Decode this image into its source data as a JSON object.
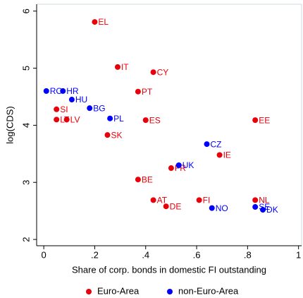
{
  "chart_data": {
    "type": "scatter",
    "x_label": "Share of corp. bonds in domestic FI outstanding",
    "y_label": "log(CDS)",
    "xlim": [
      -0.028,
      1.012
    ],
    "ylim": [
      1.89,
      6.12
    ],
    "xticks": [
      0,
      {
        "value": 0.2,
        "label": ".2"
      },
      {
        "value": 0.4,
        "label": ".4"
      },
      {
        "value": 0.6,
        "label": ".6"
      },
      {
        "value": 0.8,
        "label": ".8"
      },
      1
    ],
    "yticks": [
      2,
      3,
      4,
      5,
      6
    ],
    "legend": "bottom",
    "series": [
      {
        "name": "Euro-Area",
        "color": "#e8000b",
        "labels": [
          "EL",
          "IT",
          "CY",
          "PT",
          "SI",
          "LT",
          "LV",
          "ES",
          "EE",
          "SK",
          "IE",
          "FR",
          "BE",
          "AT",
          "DE",
          "FI",
          "NL"
        ],
        "x": [
          0.2,
          0.29,
          0.43,
          0.37,
          0.05,
          0.05,
          0.09,
          0.4,
          0.83,
          0.25,
          0.69,
          0.5,
          0.37,
          0.43,
          0.48,
          0.61,
          0.83
        ],
        "values": [
          5.81,
          5.02,
          4.93,
          4.59,
          4.28,
          4.1,
          4.1,
          4.09,
          4.09,
          3.83,
          3.48,
          3.25,
          3.05,
          2.69,
          2.58,
          2.69,
          2.69
        ]
      },
      {
        "name": "non-Euro-Area",
        "color": "#0000ff",
        "labels": [
          "RO",
          "HR",
          "HU",
          "BG",
          "PL",
          "CZ",
          "UK",
          "NO",
          "SE",
          "DK"
        ],
        "x": [
          0.01,
          0.075,
          0.11,
          0.18,
          0.26,
          0.64,
          0.53,
          0.66,
          0.83,
          0.86
        ],
        "values": [
          4.6,
          4.6,
          4.45,
          4.3,
          4.12,
          3.67,
          3.3,
          2.55,
          2.57,
          2.52
        ]
      }
    ]
  }
}
